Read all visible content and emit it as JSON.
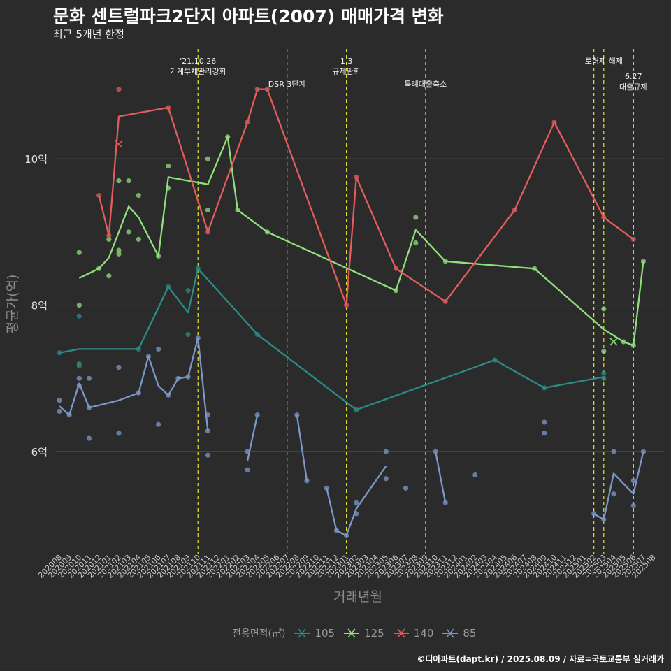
{
  "title": "문화 센트럴파크2단지 아파트(2007) 매매가격 변화",
  "subtitle": "최근 5개년 한정",
  "caption": "©디아파트(dapt.kr) / 2025.08.09 / 자료=국토교통부 실거래가",
  "colors": {
    "background": "#2b2b2b",
    "grid": "#5a5a5a",
    "vline": "#e6e62a",
    "105": "#2a8c86",
    "125": "#8fe07a",
    "140": "#e25c5c",
    "85": "#7b98c8"
  },
  "chart_data": {
    "type": "line",
    "xlabel": "거래년월",
    "ylabel": "평균가(억)",
    "ylim": [
      4.7,
      10.0
    ],
    "y_ticks": [
      {
        "value": 6,
        "label": "6억"
      },
      {
        "value": 8,
        "label": "8억"
      },
      {
        "value": 10,
        "label": "10억"
      }
    ],
    "categories": [
      "202008",
      "202009",
      "202010",
      "202011",
      "202012",
      "202101",
      "202102",
      "202103",
      "202104",
      "202105",
      "202106",
      "202107",
      "202108",
      "202109",
      "202110",
      "202111",
      "202112",
      "202201",
      "202202",
      "202203",
      "202204",
      "202205",
      "202206",
      "202207",
      "202208",
      "202209",
      "202210",
      "202211",
      "202212",
      "202301",
      "202302",
      "202303",
      "202304",
      "202305",
      "202306",
      "202307",
      "202308",
      "202309",
      "202310",
      "202311",
      "202312",
      "202401",
      "202402",
      "202403",
      "202404",
      "202405",
      "202406",
      "202407",
      "202408",
      "202409",
      "202410",
      "202411",
      "202412",
      "202501",
      "202502",
      "202503",
      "202504",
      "202505",
      "202506",
      "202507",
      "202508"
    ],
    "legend_title": "전용면적(㎡)",
    "events": [
      {
        "x": "202110",
        "label": "'21.10.26\n가계부채관리강화",
        "row": 0
      },
      {
        "x": "202207",
        "label": "DSR 3단계",
        "row": 1
      },
      {
        "x": "202301",
        "label": "1.3\n규제완화",
        "row": 0
      },
      {
        "x": "202309",
        "label": "특례대출축소",
        "row": 1
      },
      {
        "x": "202502",
        "label": "",
        "row": 0
      },
      {
        "x": "202503",
        "label": "토허제 해제",
        "row": 0
      },
      {
        "x": "202506",
        "label": "6.27\n대출규제",
        "row": 2
      }
    ],
    "series": [
      {
        "name": "105",
        "color": "#2a8c86",
        "line": [
          [
            "202008",
            7.35
          ],
          [
            "202010",
            7.4
          ],
          [
            "202104",
            7.4
          ],
          [
            "202107",
            8.25
          ],
          [
            "202109",
            7.9
          ],
          [
            "202110",
            8.5
          ],
          [
            "202204",
            7.6
          ],
          [
            "202302",
            6.57
          ],
          [
            "202404",
            7.25
          ],
          [
            "202409",
            6.87
          ],
          [
            "202503",
            7.02
          ]
        ],
        "points": [
          [
            "202008",
            7.35
          ],
          [
            "202010",
            7.85
          ],
          [
            "202010",
            7.2
          ],
          [
            "202010",
            7.17
          ],
          [
            "202104",
            7.4
          ],
          [
            "202107",
            8.25
          ],
          [
            "202109",
            8.2
          ],
          [
            "202109",
            7.6
          ],
          [
            "202110",
            8.5
          ],
          [
            "202204",
            7.6
          ],
          [
            "202302",
            6.57
          ],
          [
            "202404",
            7.25
          ],
          [
            "202409",
            6.87
          ],
          [
            "202503",
            7.07
          ],
          [
            "202503",
            7.0
          ]
        ]
      },
      {
        "name": "125",
        "color": "#8fe07a",
        "line": [
          [
            "202010",
            8.37
          ],
          [
            "202012",
            8.5
          ],
          [
            "202101",
            8.65
          ],
          [
            "202102",
            9.0
          ],
          [
            "202103",
            9.35
          ],
          [
            "202104",
            9.2
          ],
          [
            "202106",
            8.67
          ],
          [
            "202107",
            9.75
          ],
          [
            "202111",
            9.65
          ],
          [
            "202201",
            10.3
          ],
          [
            "202202",
            9.3
          ],
          [
            "202205",
            9.0
          ],
          [
            "202306",
            8.2
          ],
          [
            "202308",
            9.03
          ],
          [
            "202311",
            8.6
          ],
          [
            "202408",
            8.5
          ],
          [
            "202503",
            7.67
          ],
          [
            "202505",
            7.5
          ],
          [
            "202506",
            7.45
          ],
          [
            "202507",
            8.6
          ]
        ],
        "points": [
          [
            "202010",
            8.72
          ],
          [
            "202010",
            8.0
          ],
          [
            "202012",
            8.5
          ],
          [
            "202101",
            8.4
          ],
          [
            "202101",
            8.9
          ],
          [
            "202102",
            9.7
          ],
          [
            "202102",
            8.75
          ],
          [
            "202102",
            8.7
          ],
          [
            "202103",
            9.7
          ],
          [
            "202103",
            9.0
          ],
          [
            "202104",
            9.5
          ],
          [
            "202104",
            8.9
          ],
          [
            "202106",
            8.67
          ],
          [
            "202107",
            9.9
          ],
          [
            "202107",
            9.6
          ],
          [
            "202111",
            10.0
          ],
          [
            "202111",
            9.3
          ],
          [
            "202201",
            10.3
          ],
          [
            "202202",
            9.3
          ],
          [
            "202205",
            9.0
          ],
          [
            "202306",
            8.2
          ],
          [
            "202308",
            9.2
          ],
          [
            "202308",
            8.85
          ],
          [
            "202311",
            8.6
          ],
          [
            "202408",
            8.5
          ],
          [
            "202503",
            7.95
          ],
          [
            "202503",
            7.37
          ],
          [
            "202505",
            7.5
          ],
          [
            "202506",
            7.45
          ],
          [
            "202507",
            8.6
          ]
        ],
        "crosses": [
          [
            "202504",
            7.5
          ]
        ]
      },
      {
        "name": "140",
        "color": "#e25c5c",
        "line": [
          [
            "202012",
            9.5
          ],
          [
            "202101",
            8.95
          ],
          [
            "202102",
            10.58
          ],
          [
            "202107",
            10.7
          ],
          [
            "202111",
            9.0
          ],
          [
            "202203",
            10.5
          ],
          [
            "202204",
            10.95
          ],
          [
            "202205",
            10.95
          ],
          [
            "202301",
            8.0
          ],
          [
            "202302",
            9.75
          ],
          [
            "202306",
            8.5
          ],
          [
            "202311",
            8.05
          ],
          [
            "202406",
            9.3
          ],
          [
            "202410",
            10.5
          ],
          [
            "202503",
            9.2
          ],
          [
            "202506",
            8.9
          ]
        ],
        "points": [
          [
            "202012",
            9.5
          ],
          [
            "202101",
            8.95
          ],
          [
            "202102",
            10.95
          ],
          [
            "202107",
            10.7
          ],
          [
            "202111",
            9.0
          ],
          [
            "202203",
            10.5
          ],
          [
            "202204",
            10.95
          ],
          [
            "202205",
            10.95
          ],
          [
            "202301",
            8.0
          ],
          [
            "202302",
            9.75
          ],
          [
            "202306",
            8.5
          ],
          [
            "202311",
            8.05
          ],
          [
            "202406",
            9.3
          ],
          [
            "202410",
            10.5
          ],
          [
            "202503",
            9.2
          ],
          [
            "202506",
            8.9
          ]
        ],
        "crosses": [
          [
            "202102",
            10.2
          ]
        ]
      },
      {
        "name": "85",
        "color": "#7b98c8",
        "segments": [
          [
            [
              "202008",
              6.62
            ],
            [
              "202009",
              6.5
            ],
            [
              "202010",
              6.93
            ],
            [
              "202011",
              6.6
            ],
            [
              "202102",
              6.7
            ],
            [
              "202104",
              6.8
            ],
            [
              "202105",
              7.3
            ],
            [
              "202106",
              6.9
            ],
            [
              "202107",
              6.77
            ],
            [
              "202108",
              7.0
            ],
            [
              "202109",
              7.02
            ],
            [
              "202110",
              7.55
            ],
            [
              "202111",
              6.28
            ]
          ],
          [
            [
              "202203",
              5.87
            ],
            [
              "202204",
              6.5
            ]
          ],
          [
            [
              "202208",
              6.5
            ],
            [
              "202209",
              5.6
            ]
          ],
          [
            [
              "202211",
              5.5
            ],
            [
              "202212",
              4.92
            ],
            [
              "202301",
              4.85
            ],
            [
              "202302",
              5.22
            ],
            [
              "202305",
              5.8
            ]
          ],
          [
            [
              "202310",
              6.0
            ],
            [
              "202311",
              5.3
            ]
          ],
          [
            [
              "202502",
              5.15
            ],
            [
              "202503",
              5.07
            ],
            [
              "202504",
              5.7
            ],
            [
              "202506",
              5.42
            ],
            [
              "202507",
              6.0
            ]
          ]
        ],
        "points": [
          [
            "202008",
            6.7
          ],
          [
            "202008",
            6.55
          ],
          [
            "202009",
            6.5
          ],
          [
            "202010",
            7.0
          ],
          [
            "202010",
            6.9
          ],
          [
            "202011",
            7.0
          ],
          [
            "202011",
            6.6
          ],
          [
            "202011",
            6.18
          ],
          [
            "202102",
            7.15
          ],
          [
            "202102",
            6.25
          ],
          [
            "202104",
            6.8
          ],
          [
            "202105",
            7.3
          ],
          [
            "202106",
            7.4
          ],
          [
            "202106",
            6.37
          ],
          [
            "202107",
            6.77
          ],
          [
            "202108",
            7.0
          ],
          [
            "202109",
            7.02
          ],
          [
            "202110",
            7.55
          ],
          [
            "202111",
            6.5
          ],
          [
            "202111",
            6.28
          ],
          [
            "202111",
            5.95
          ],
          [
            "202203",
            6.0
          ],
          [
            "202203",
            5.75
          ],
          [
            "202204",
            6.5
          ],
          [
            "202208",
            6.5
          ],
          [
            "202209",
            5.6
          ],
          [
            "202211",
            5.5
          ],
          [
            "202212",
            4.92
          ],
          [
            "202301",
            4.85
          ],
          [
            "202302",
            5.3
          ],
          [
            "202302",
            5.15
          ],
          [
            "202305",
            6.0
          ],
          [
            "202305",
            5.63
          ],
          [
            "202307",
            5.5
          ],
          [
            "202310",
            6.0
          ],
          [
            "202311",
            5.3
          ],
          [
            "202402",
            5.68
          ],
          [
            "202409",
            6.4
          ],
          [
            "202409",
            6.25
          ],
          [
            "202502",
            5.15
          ],
          [
            "202503",
            5.07
          ],
          [
            "202504",
            6.0
          ],
          [
            "202504",
            5.42
          ],
          [
            "202506",
            5.6
          ],
          [
            "202506",
            5.26
          ],
          [
            "202507",
            6.0
          ]
        ]
      }
    ]
  }
}
